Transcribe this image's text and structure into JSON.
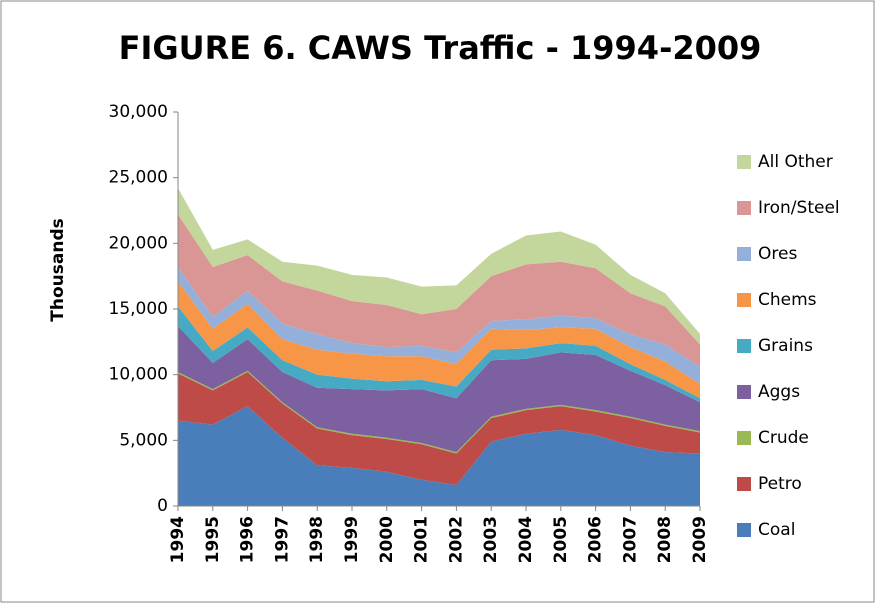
{
  "chart_data": {
    "type": "stacked_area",
    "title": "FIGURE 6.  CAWS Traffic - 1994-2009",
    "y_label": "Thousands",
    "categories": [
      "1994",
      "1995",
      "1996",
      "1997",
      "1998",
      "1999",
      "2000",
      "2001",
      "2002",
      "2003",
      "2004",
      "2005",
      "2006",
      "2007",
      "2008",
      "2009"
    ],
    "ylim": [
      0,
      30000
    ],
    "yticks": [
      0,
      {
        "value": 5000,
        "label": "5,000"
      },
      {
        "value": 10000,
        "label": "10,000"
      },
      {
        "value": 15000,
        "label": "15,000"
      },
      {
        "value": 20000,
        "label": "20,000"
      },
      {
        "value": 25000,
        "label": "25,000"
      },
      {
        "value": 30000,
        "label": "30,000"
      }
    ],
    "grid": false,
    "legend": "right",
    "series": [
      {
        "name": "Coal",
        "color": "#4a7ebb",
        "values": [
          6500,
          6200,
          7600,
          5200,
          3100,
          2900,
          2600,
          2000,
          1600,
          4900,
          5500,
          5800,
          5400,
          4600,
          4100,
          4000
        ]
      },
      {
        "name": "Petro",
        "color": "#be4b48",
        "values": [
          3600,
          2600,
          2600,
          2600,
          2800,
          2500,
          2500,
          2700,
          2400,
          1800,
          1800,
          1800,
          1800,
          2100,
          2000,
          1600
        ]
      },
      {
        "name": "Crude",
        "color": "#98b954",
        "values": [
          100,
          100,
          100,
          100,
          100,
          100,
          100,
          100,
          100,
          100,
          100,
          100,
          100,
          100,
          100,
          100
        ]
      },
      {
        "name": "Aggs",
        "color": "#7d60a0",
        "values": [
          3500,
          2000,
          2400,
          2300,
          3000,
          3400,
          3600,
          4100,
          4100,
          4300,
          3800,
          4000,
          4200,
          3500,
          3000,
          2200
        ]
      },
      {
        "name": "Grains",
        "color": "#46aac5",
        "values": [
          1500,
          900,
          900,
          900,
          1000,
          800,
          700,
          700,
          900,
          800,
          800,
          700,
          700,
          500,
          400,
          300
        ]
      },
      {
        "name": "Chems",
        "color": "#f79646",
        "values": [
          1900,
          1700,
          1800,
          1600,
          1900,
          1900,
          1900,
          1800,
          1700,
          1600,
          1400,
          1200,
          1300,
          1300,
          1400,
          1100
        ]
      },
      {
        "name": "Ores",
        "color": "#94afd9",
        "values": [
          1100,
          900,
          1000,
          1200,
          1200,
          800,
          700,
          800,
          900,
          600,
          800,
          900,
          800,
          1000,
          1300,
          1300
        ]
      },
      {
        "name": "Iron/Steel",
        "color": "#d99694",
        "values": [
          4000,
          3800,
          2700,
          3200,
          3300,
          3200,
          3200,
          2400,
          3300,
          3400,
          4200,
          4100,
          3800,
          3100,
          2900,
          1700
        ]
      },
      {
        "name": "All Other",
        "color": "#c3d69b",
        "values": [
          2000,
          1300,
          1200,
          1500,
          1900,
          2000,
          2100,
          2100,
          1800,
          1700,
          2200,
          2300,
          1800,
          1400,
          1000,
          800
        ]
      }
    ]
  }
}
